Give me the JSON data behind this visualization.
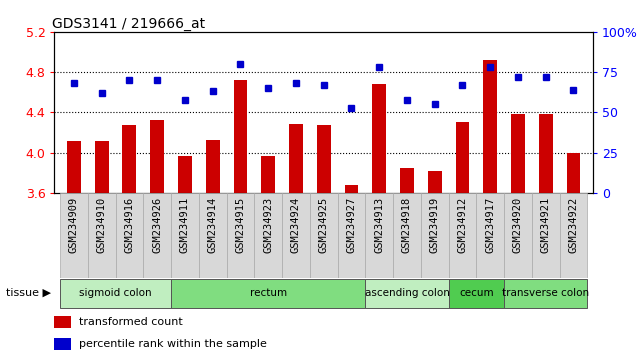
{
  "title": "GDS3141 / 219666_at",
  "samples": [
    "GSM234909",
    "GSM234910",
    "GSM234916",
    "GSM234926",
    "GSM234911",
    "GSM234914",
    "GSM234915",
    "GSM234923",
    "GSM234924",
    "GSM234925",
    "GSM234927",
    "GSM234913",
    "GSM234918",
    "GSM234919",
    "GSM234912",
    "GSM234917",
    "GSM234920",
    "GSM234921",
    "GSM234922"
  ],
  "transformed_count": [
    4.12,
    4.12,
    4.27,
    4.32,
    3.97,
    4.13,
    4.72,
    3.97,
    4.28,
    4.27,
    3.68,
    4.68,
    3.85,
    3.82,
    4.3,
    4.92,
    4.38,
    4.38,
    4.0
  ],
  "percentile_rank": [
    68,
    62,
    70,
    70,
    58,
    63,
    80,
    65,
    68,
    67,
    53,
    78,
    58,
    55,
    67,
    78,
    72,
    72,
    64
  ],
  "ylim_left": [
    3.6,
    5.2
  ],
  "ylim_right": [
    0,
    100
  ],
  "yticks_left": [
    3.6,
    4.0,
    4.4,
    4.8,
    5.2
  ],
  "yticks_right": [
    0,
    25,
    50,
    75,
    100
  ],
  "hlines": [
    4.0,
    4.4,
    4.8
  ],
  "tissue_groups": [
    {
      "label": "sigmoid colon",
      "start": 0,
      "end": 4,
      "color": "#c0eec0"
    },
    {
      "label": "rectum",
      "start": 4,
      "end": 11,
      "color": "#80dd80"
    },
    {
      "label": "ascending colon",
      "start": 11,
      "end": 14,
      "color": "#c0eec0"
    },
    {
      "label": "cecum",
      "start": 14,
      "end": 16,
      "color": "#50cc50"
    },
    {
      "label": "transverse colon",
      "start": 16,
      "end": 19,
      "color": "#80dd80"
    }
  ],
  "bar_color": "#cc0000",
  "dot_color": "#0000cc",
  "bar_width": 0.5,
  "title_fontsize": 10,
  "tick_fontsize": 7.5,
  "tissue_fontsize": 7.5,
  "legend_fontsize": 8,
  "xlabels_bg": "#d8d8d8",
  "plot_bg": "#ffffff",
  "right_axis_label": "100%"
}
